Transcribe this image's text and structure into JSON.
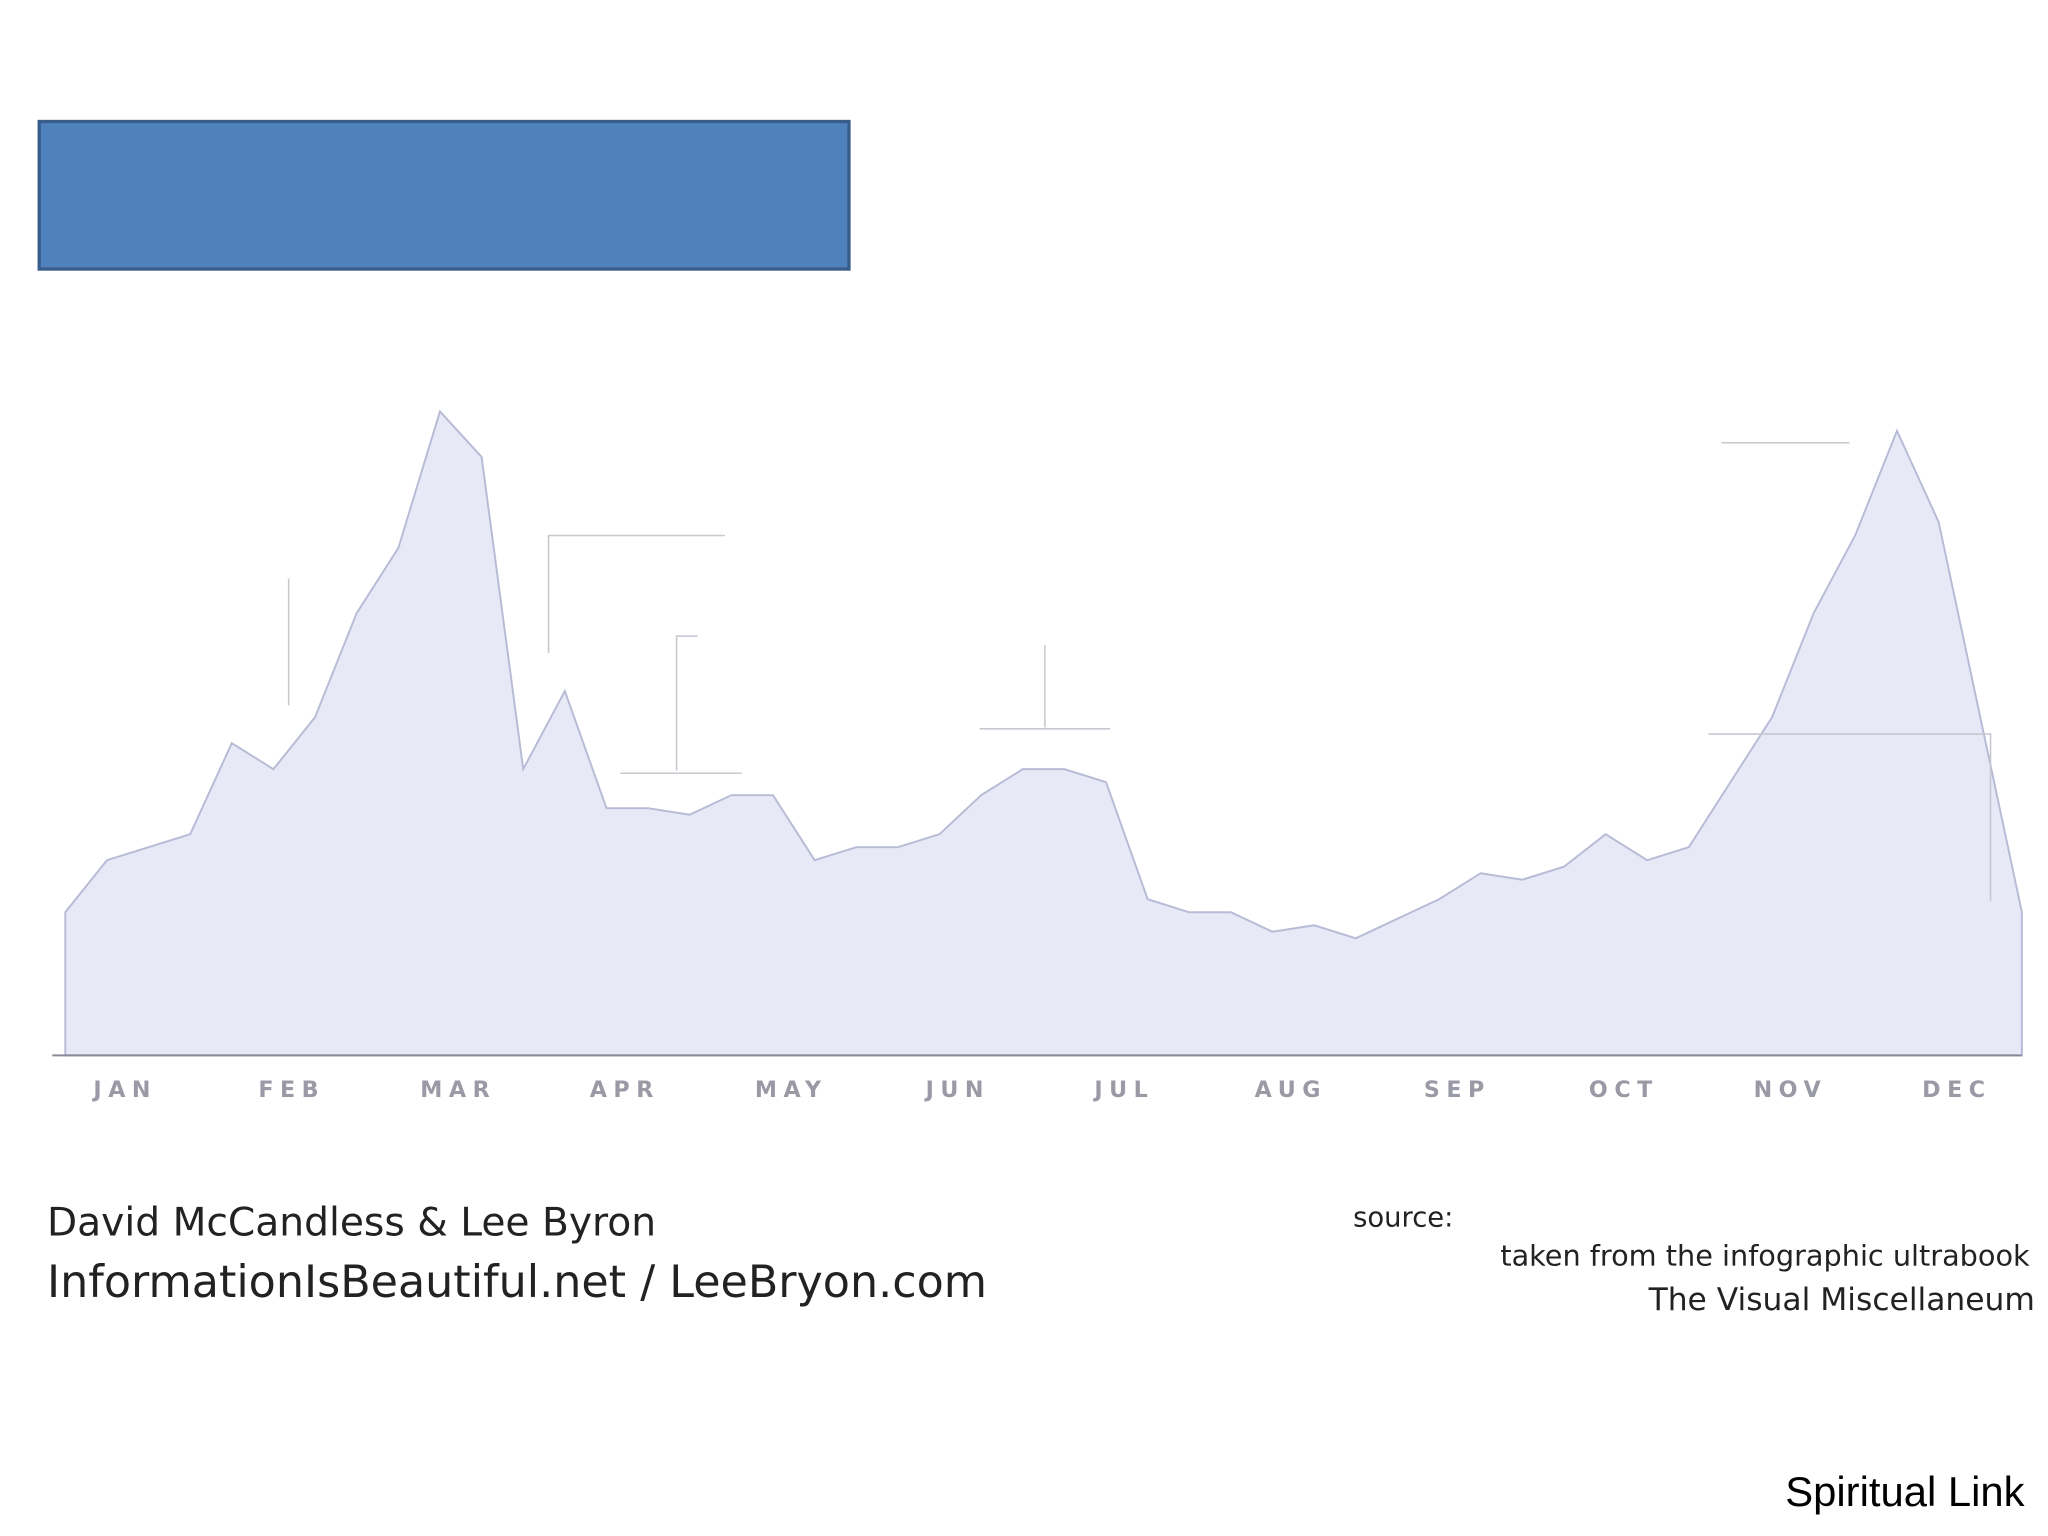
{
  "chart_data": {
    "type": "area",
    "categories": [
      null,
      "JAN",
      null,
      null,
      null,
      "FEB",
      null,
      null,
      null,
      "MAR",
      null,
      null,
      null,
      "APR",
      null,
      null,
      null,
      "MAY",
      null,
      null,
      null,
      "JUN",
      null,
      null,
      null,
      "JUL",
      null,
      null,
      null,
      "AUG",
      null,
      null,
      null,
      "SEP",
      null,
      null,
      null,
      "OCT",
      null,
      null,
      null,
      "NOV",
      null,
      null,
      null,
      "DEC",
      null,
      null
    ],
    "series": [
      {
        "color": "#b8bbd6",
        "values": [
          22,
          30,
          32,
          34,
          48,
          44,
          52,
          68,
          78,
          99,
          92,
          44,
          56,
          38,
          38,
          37,
          40,
          40,
          30,
          32,
          32,
          34,
          40,
          44,
          44,
          42,
          24,
          22,
          22,
          19,
          20,
          18,
          21,
          24,
          28,
          27,
          29,
          34,
          30,
          32,
          42,
          52,
          68,
          80,
          96,
          82,
          52,
          22
        ]
      }
    ],
    "ylim": [
      0,
      100
    ]
  },
  "credits": {
    "authors": "David McCandless & Lee Byron",
    "sites": "InformationIsBeautiful.net / LeeBryon.com"
  },
  "source": {
    "label": "source:",
    "line1": "taken from the infographic ultrabook",
    "line2": "The Visual Miscellaneum"
  },
  "footer": "Spiritual Link"
}
